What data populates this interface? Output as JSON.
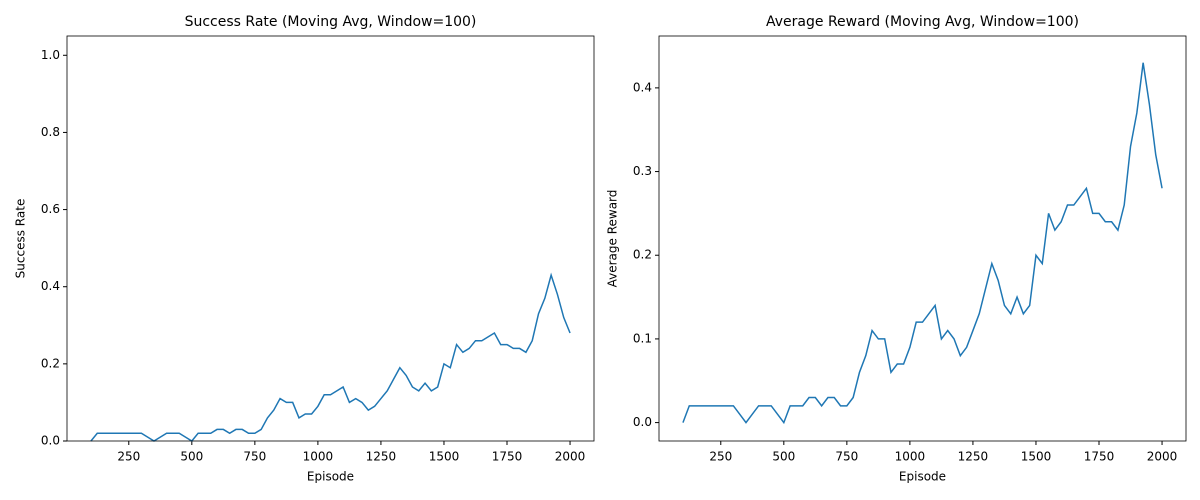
{
  "chart_data": [
    {
      "type": "line",
      "title": "Success Rate (Moving Avg, Window=100)",
      "xlabel": "Episode",
      "ylabel": "Success Rate",
      "x": [
        100,
        125,
        150,
        175,
        200,
        225,
        250,
        275,
        300,
        325,
        350,
        375,
        400,
        425,
        450,
        475,
        500,
        525,
        550,
        575,
        600,
        625,
        650,
        675,
        700,
        725,
        750,
        775,
        800,
        825,
        850,
        875,
        900,
        925,
        950,
        975,
        1000,
        1025,
        1050,
        1075,
        1100,
        1125,
        1150,
        1175,
        1200,
        1225,
        1250,
        1275,
        1300,
        1325,
        1350,
        1375,
        1400,
        1425,
        1450,
        1475,
        1500,
        1525,
        1550,
        1575,
        1600,
        1625,
        1650,
        1675,
        1700,
        1725,
        1750,
        1775,
        1800,
        1825,
        1850,
        1875,
        1900,
        1925,
        1950,
        1975,
        2000
      ],
      "series": [
        {
          "name": "Success Rate",
          "color": "#1f77b4",
          "values": [
            0,
            0.02,
            0.02,
            0.02,
            0.02,
            0.02,
            0.02,
            0.02,
            0.02,
            0.01,
            0,
            0.01,
            0.02,
            0.02,
            0.02,
            0.01,
            0,
            0.02,
            0.02,
            0.02,
            0.03,
            0.03,
            0.02,
            0.03,
            0.03,
            0.02,
            0.02,
            0.03,
            0.06,
            0.08,
            0.11,
            0.1,
            0.1,
            0.06,
            0.07,
            0.07,
            0.09,
            0.12,
            0.12,
            0.13,
            0.14,
            0.1,
            0.11,
            0.1,
            0.08,
            0.09,
            0.11,
            0.13,
            0.16,
            0.19,
            0.17,
            0.14,
            0.13,
            0.15,
            0.13,
            0.14,
            0.2,
            0.19,
            0.25,
            0.23,
            0.24,
            0.26,
            0.26,
            0.27,
            0.28,
            0.25,
            0.25,
            0.24,
            0.24,
            0.23,
            0.26,
            0.33,
            0.37,
            0.43,
            0.38,
            0.32,
            0.28
          ]
        }
      ],
      "xlim": [
        5,
        2095
      ],
      "xticks": [
        250,
        500,
        750,
        1000,
        1250,
        1500,
        1750,
        2000
      ],
      "ylim": [
        0,
        1.05
      ],
      "yticks": [
        {
          "value": 0,
          "label": "0.0"
        },
        {
          "value": 0.2,
          "label": "0.2"
        },
        {
          "value": 0.4,
          "label": "0.4"
        },
        {
          "value": 0.6,
          "label": "0.6"
        },
        {
          "value": 0.8,
          "label": "0.8"
        },
        {
          "value": 1,
          "label": "1.0"
        }
      ]
    },
    {
      "type": "line",
      "title": "Average Reward (Moving Avg, Window=100)",
      "xlabel": "Episode",
      "ylabel": "Average Reward",
      "x": [
        100,
        125,
        150,
        175,
        200,
        225,
        250,
        275,
        300,
        325,
        350,
        375,
        400,
        425,
        450,
        475,
        500,
        525,
        550,
        575,
        600,
        625,
        650,
        675,
        700,
        725,
        750,
        775,
        800,
        825,
        850,
        875,
        900,
        925,
        950,
        975,
        1000,
        1025,
        1050,
        1075,
        1100,
        1125,
        1150,
        1175,
        1200,
        1225,
        1250,
        1275,
        1300,
        1325,
        1350,
        1375,
        1400,
        1425,
        1450,
        1475,
        1500,
        1525,
        1550,
        1575,
        1600,
        1625,
        1650,
        1675,
        1700,
        1725,
        1750,
        1775,
        1800,
        1825,
        1850,
        1875,
        1900,
        1925,
        1950,
        1975,
        2000
      ],
      "series": [
        {
          "name": "Average Reward",
          "color": "#1f77b4",
          "values": [
            0,
            0.02,
            0.02,
            0.02,
            0.02,
            0.02,
            0.02,
            0.02,
            0.02,
            0.01,
            0,
            0.01,
            0.02,
            0.02,
            0.02,
            0.01,
            0,
            0.02,
            0.02,
            0.02,
            0.03,
            0.03,
            0.02,
            0.03,
            0.03,
            0.02,
            0.02,
            0.03,
            0.06,
            0.08,
            0.11,
            0.1,
            0.1,
            0.06,
            0.07,
            0.07,
            0.09,
            0.12,
            0.12,
            0.13,
            0.14,
            0.1,
            0.11,
            0.1,
            0.08,
            0.09,
            0.11,
            0.13,
            0.16,
            0.19,
            0.17,
            0.14,
            0.13,
            0.15,
            0.13,
            0.14,
            0.2,
            0.19,
            0.25,
            0.23,
            0.24,
            0.26,
            0.26,
            0.27,
            0.28,
            0.25,
            0.25,
            0.24,
            0.24,
            0.23,
            0.26,
            0.33,
            0.37,
            0.43,
            0.38,
            0.32,
            0.28
          ]
        }
      ],
      "xlim": [
        5,
        2095
      ],
      "xticks": [
        250,
        500,
        750,
        1000,
        1250,
        1500,
        1750,
        2000
      ],
      "ylim": [
        -0.022,
        0.462
      ],
      "yticks": [
        {
          "value": 0,
          "label": "0.0"
        },
        {
          "value": 0.1,
          "label": "0.1"
        },
        {
          "value": 0.2,
          "label": "0.2"
        },
        {
          "value": 0.3,
          "label": "0.3"
        },
        {
          "value": 0.4,
          "label": "0.4"
        }
      ]
    }
  ]
}
